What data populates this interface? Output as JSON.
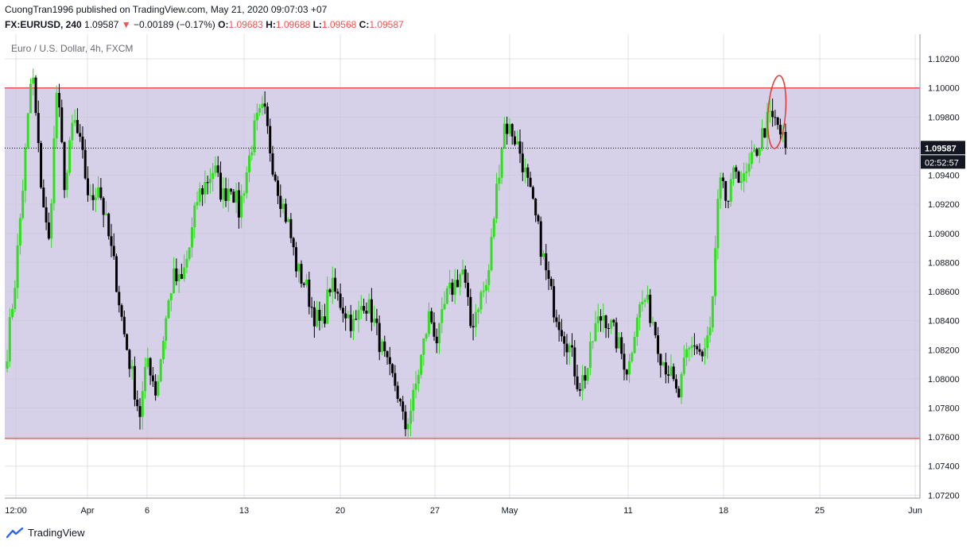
{
  "header": {
    "line1": "CuongTran1996 published on TradingView.com, May 21, 2020 09:07:03 +07",
    "symbol": "FX:EURUSD, 240",
    "last": "1.09587",
    "change": "−0.00189 (−0.17%)",
    "o_label": "O:",
    "o_value": "1.09683",
    "h_label": "H:",
    "h_value": "1.09688",
    "l_label": "L:",
    "l_value": "1.09568",
    "c_label": "C:",
    "c_value": "1.09587"
  },
  "chart_data": {
    "type": "candlestick",
    "title": "Euro / U.S. Dollar, 4h, FXCM",
    "x_tick_labels": [
      "12:00",
      "Apr",
      "6",
      "13",
      "20",
      "27",
      "May",
      "11",
      "18",
      "25",
      "Jun"
    ],
    "y_tick_labels": [
      "1.10200",
      "1.10000",
      "1.09800",
      "1.09400",
      "1.09200",
      "1.09000",
      "1.08800",
      "1.08600",
      "1.08400",
      "1.08200",
      "1.08000",
      "1.07800",
      "1.07600",
      "1.07400",
      "1.07200"
    ],
    "ylim": [
      1.0718,
      1.1037
    ],
    "current_price": 1.09587,
    "current_price_label": "1.09587",
    "countdown_label": "02:52:57",
    "range_box": {
      "upper": 1.1,
      "lower": 1.0759
    },
    "grid": true,
    "colors": {
      "up": "#33dd22",
      "down": "#000000",
      "range_fill": "#d6d0e8",
      "range_line": "#e53935",
      "annotation": "#e53935"
    },
    "close_path": [
      1.082,
      1.087,
      1.094,
      1.1015,
      1.094,
      1.089,
      1.1,
      1.093,
      1.098,
      1.0955,
      1.092,
      1.0935,
      1.0905,
      1.0875,
      1.0835,
      1.0805,
      1.0775,
      1.0815,
      1.079,
      1.0835,
      1.087,
      1.0865,
      1.089,
      1.0925,
      1.0935,
      1.0945,
      1.0925,
      1.0935,
      1.0915,
      1.0945,
      1.0975,
      1.0985,
      1.095,
      1.0925,
      1.0905,
      1.0875,
      1.0865,
      1.0845,
      1.0835,
      1.0865,
      1.0855,
      1.0845,
      1.0835,
      1.0855,
      1.0845,
      1.0825,
      1.0805,
      1.0795,
      1.0765,
      1.0785,
      1.0815,
      1.0845,
      1.0825,
      1.0855,
      1.0865,
      1.0875,
      1.0835,
      1.0855,
      1.0865,
      1.0925,
      1.0975,
      1.097,
      1.0955,
      1.093,
      1.0905,
      1.0875,
      1.085,
      1.0835,
      1.082,
      1.0795,
      1.0805,
      1.0835,
      1.0845,
      1.0835,
      1.082,
      1.0805,
      1.0845,
      1.0855,
      1.084,
      1.0815,
      1.0805,
      1.0785,
      1.0815,
      1.0825,
      1.0815,
      1.0835,
      1.0935,
      1.092,
      1.0945,
      1.0935,
      1.095,
      1.0965,
      1.098,
      1.0975,
      1.09587
    ],
    "annotations": [
      "red ellipse around latest candles near 1.1000"
    ]
  },
  "footer": {
    "brand": "TradingView",
    "logo_icon": "tradingview-logo-icon"
  }
}
